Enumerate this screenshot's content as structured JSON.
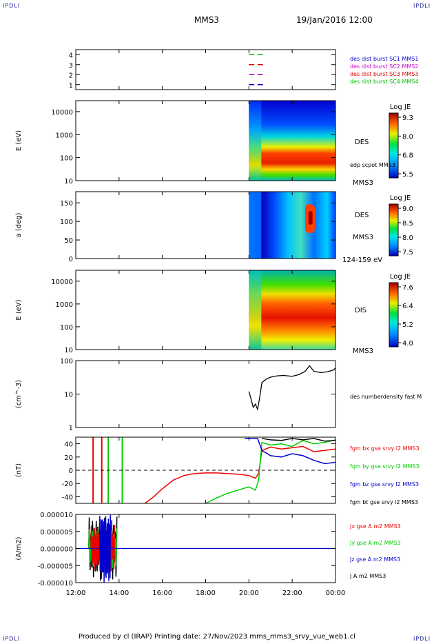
{
  "header": {
    "corner_label": "IPDLI",
    "spacecraft": "MMS3",
    "datetime": "19/Jan/2016 12:00"
  },
  "footer": {
    "text": "Produced by cl (IRAP)   Printing date: 27/Nov/2023   mms_mms3_srvy_vue_web1.cl"
  },
  "chart_data": [
    {
      "type": "scatter",
      "panel": "availability",
      "ylim": [
        0.5,
        4.5
      ],
      "yticks": [
        "1",
        "2",
        "3",
        "4"
      ],
      "legend": [
        {
          "label": "des dist burst SC1 MMS1",
          "color": "#0000cc"
        },
        {
          "label": "des dist burst SC2 MMS2",
          "color": "#cc00cc"
        },
        {
          "label": "des dist burst SC3 MMS3",
          "color": "#dd0000"
        },
        {
          "label": "des dist burst SC4 MMS4",
          "color": "#00bb00"
        }
      ],
      "segments": [
        {
          "level": 4,
          "hours": [
            [
              20.0,
              20.25
            ],
            [
              20.4,
              20.65
            ]
          ],
          "color": "#00bb00"
        },
        {
          "level": 3,
          "hours": [
            [
              20.0,
              20.25
            ],
            [
              20.4,
              20.65
            ],
            [
              23.9,
              23.92
            ]
          ],
          "color": "#dd0000"
        },
        {
          "level": 2,
          "hours": [
            [
              20.0,
              20.25
            ],
            [
              20.4,
              20.65
            ],
            [
              23.9,
              23.92
            ]
          ],
          "color": "#cc00cc"
        },
        {
          "level": 1,
          "hours": [
            [
              20.0,
              20.25
            ],
            [
              20.4,
              20.65
            ]
          ],
          "color": "#0000cc"
        }
      ]
    },
    {
      "type": "heatmap",
      "panel": "electron-energy",
      "ylabel": "E (eV)",
      "yscale": "log",
      "ylim": [
        10,
        30000
      ],
      "yticks": [
        "10",
        "100",
        "1000",
        "10000"
      ],
      "data_start_hour": 20.0,
      "colorbar": {
        "title": "Log JE",
        "ticks": [
          "9.3",
          "8.0",
          "6.8",
          "5.5"
        ]
      },
      "right_labels": [
        "DES",
        "edp scpot MMS3",
        "MMS3"
      ]
    },
    {
      "type": "heatmap",
      "panel": "electron-pitch",
      "ylabel": "a (deg)",
      "ylim": [
        0,
        180
      ],
      "yticks": [
        "0",
        "50",
        "100",
        "150"
      ],
      "data_start_hour": 20.0,
      "colorbar": {
        "title": "Log JE",
        "ticks": [
          "9.0",
          "8.5",
          "8.0",
          "7.5"
        ]
      },
      "right_labels": [
        "DES",
        "MMS3",
        "124-159 eV"
      ]
    },
    {
      "type": "heatmap",
      "panel": "ion-energy",
      "ylabel": "E (eV)",
      "yscale": "log",
      "ylim": [
        10,
        30000
      ],
      "yticks": [
        "10",
        "100",
        "1000",
        "10000"
      ],
      "data_start_hour": 20.0,
      "colorbar": {
        "title": "Log JE",
        "ticks": [
          "7.6",
          "6.4",
          "5.2",
          "4.0"
        ]
      },
      "right_labels": [
        "DIS",
        "MMS3"
      ]
    },
    {
      "type": "line",
      "panel": "density",
      "ylabel": "(cm^-3)",
      "yscale": "log",
      "ylim": [
        1,
        100
      ],
      "yticks": [
        "1",
        "10",
        "100"
      ],
      "legend": [
        {
          "label": "des numberdensity fast M",
          "color": "#000000"
        }
      ],
      "x": [
        20.0,
        20.1,
        20.2,
        20.3,
        20.4,
        20.5,
        20.6,
        20.8,
        21.0,
        21.3,
        21.6,
        22.0,
        22.3,
        22.6,
        22.8,
        23.0,
        23.3,
        23.6,
        23.9,
        24.0
      ],
      "y": [
        12,
        7,
        4,
        5,
        3.5,
        8,
        22,
        28,
        32,
        35,
        36,
        34,
        38,
        48,
        70,
        48,
        44,
        46,
        52,
        60
      ]
    },
    {
      "type": "line",
      "panel": "magnetic-field",
      "ylabel": "(nT)",
      "ylim": [
        -50,
        50
      ],
      "yticks": [
        "-40",
        "-20",
        "0",
        "20",
        "40"
      ],
      "legend": [
        {
          "label": "fgm bx gse srvy l2 MMS3",
          "color": "#ee0000"
        },
        {
          "label": "fgm by gse srvy l2 MMS3",
          "color": "#00cc00"
        },
        {
          "label": "fgm bz gse srvy l2 MMS3",
          "color": "#0000cc"
        },
        {
          "label": "fgm bt gse srvy l2 MMS3",
          "color": "#000000"
        }
      ],
      "series": [
        {
          "color": "#ee0000",
          "x": [
            15.2,
            15.6,
            16.0,
            16.5,
            17.0,
            17.5,
            18.0,
            18.5,
            19.0,
            19.5,
            20.0,
            20.3,
            20.45,
            20.6,
            21.0,
            21.5,
            22.0,
            22.5,
            23.0,
            23.5,
            24.0
          ],
          "y": [
            -50,
            -40,
            -28,
            -15,
            -8,
            -5,
            -4,
            -4,
            -5,
            -6,
            -8,
            -12,
            -5,
            30,
            35,
            32,
            34,
            36,
            28,
            30,
            32
          ]
        },
        {
          "color": "#00cc00",
          "x": [
            18.0,
            18.5,
            19.0,
            19.5,
            20.0,
            20.3,
            20.45,
            20.6,
            21.0,
            21.5,
            22.0,
            22.5,
            23.0,
            23.5,
            24.0
          ],
          "y": [
            -50,
            -42,
            -35,
            -30,
            -25,
            -30,
            -15,
            42,
            38,
            40,
            36,
            45,
            40,
            42,
            46
          ]
        },
        {
          "color": "#0000cc",
          "x": [
            19.8,
            20.0,
            20.2,
            20.4,
            20.6,
            21.0,
            21.5,
            22.0,
            22.5,
            23.0,
            23.5,
            24.0
          ],
          "y": [
            48,
            48,
            48,
            48,
            30,
            22,
            20,
            25,
            22,
            15,
            10,
            12
          ]
        },
        {
          "color": "#000000",
          "x": [
            20.6,
            21.0,
            21.5,
            22.0,
            22.5,
            23.0,
            23.5,
            24.0
          ],
          "y": [
            48,
            46,
            45,
            48,
            46,
            48,
            44,
            45
          ]
        }
      ],
      "early_spikes": [
        {
          "hour": 12.8,
          "color": "#ee0000"
        },
        {
          "hour": 13.2,
          "color": "#ee0000"
        },
        {
          "hour": 13.5,
          "color": "#00cc00"
        },
        {
          "hour": 14.15,
          "color": "#00cc00"
        }
      ]
    },
    {
      "type": "line",
      "panel": "current-density",
      "ylabel": "(A/m2)",
      "ylim": [
        -1e-05,
        1e-05
      ],
      "yticks": [
        "0.000010",
        "0.000005",
        "0.000000",
        "-0.000005",
        "-0.000010"
      ],
      "xticks": [
        "12:00",
        "14:00",
        "16:00",
        "18:00",
        "20:00",
        "22:00",
        "00:00"
      ],
      "xlim": [
        12,
        24
      ],
      "legend": [
        {
          "label": "Jx gse A m2 MMS3",
          "color": "#ee0000"
        },
        {
          "label": "Jy gse A m2 MMS3",
          "color": "#00cc00"
        },
        {
          "label": "Jz gse A m2 MMS3",
          "color": "#0000cc"
        },
        {
          "label": "J A m2 MMS3",
          "color": "#000000"
        }
      ],
      "bursts": [
        {
          "h0": 12.6,
          "h1": 13.9,
          "color": "#000000",
          "amp": 9.5e-06
        },
        {
          "h0": 12.6,
          "h1": 13.9,
          "color": "#00cc00",
          "amp": 6e-06
        },
        {
          "h0": 12.7,
          "h1": 13.8,
          "color": "#ee0000",
          "amp": 7e-06
        },
        {
          "h0": 13.1,
          "h1": 13.6,
          "color": "#0000cc",
          "amp": 1e-05
        }
      ]
    }
  ]
}
